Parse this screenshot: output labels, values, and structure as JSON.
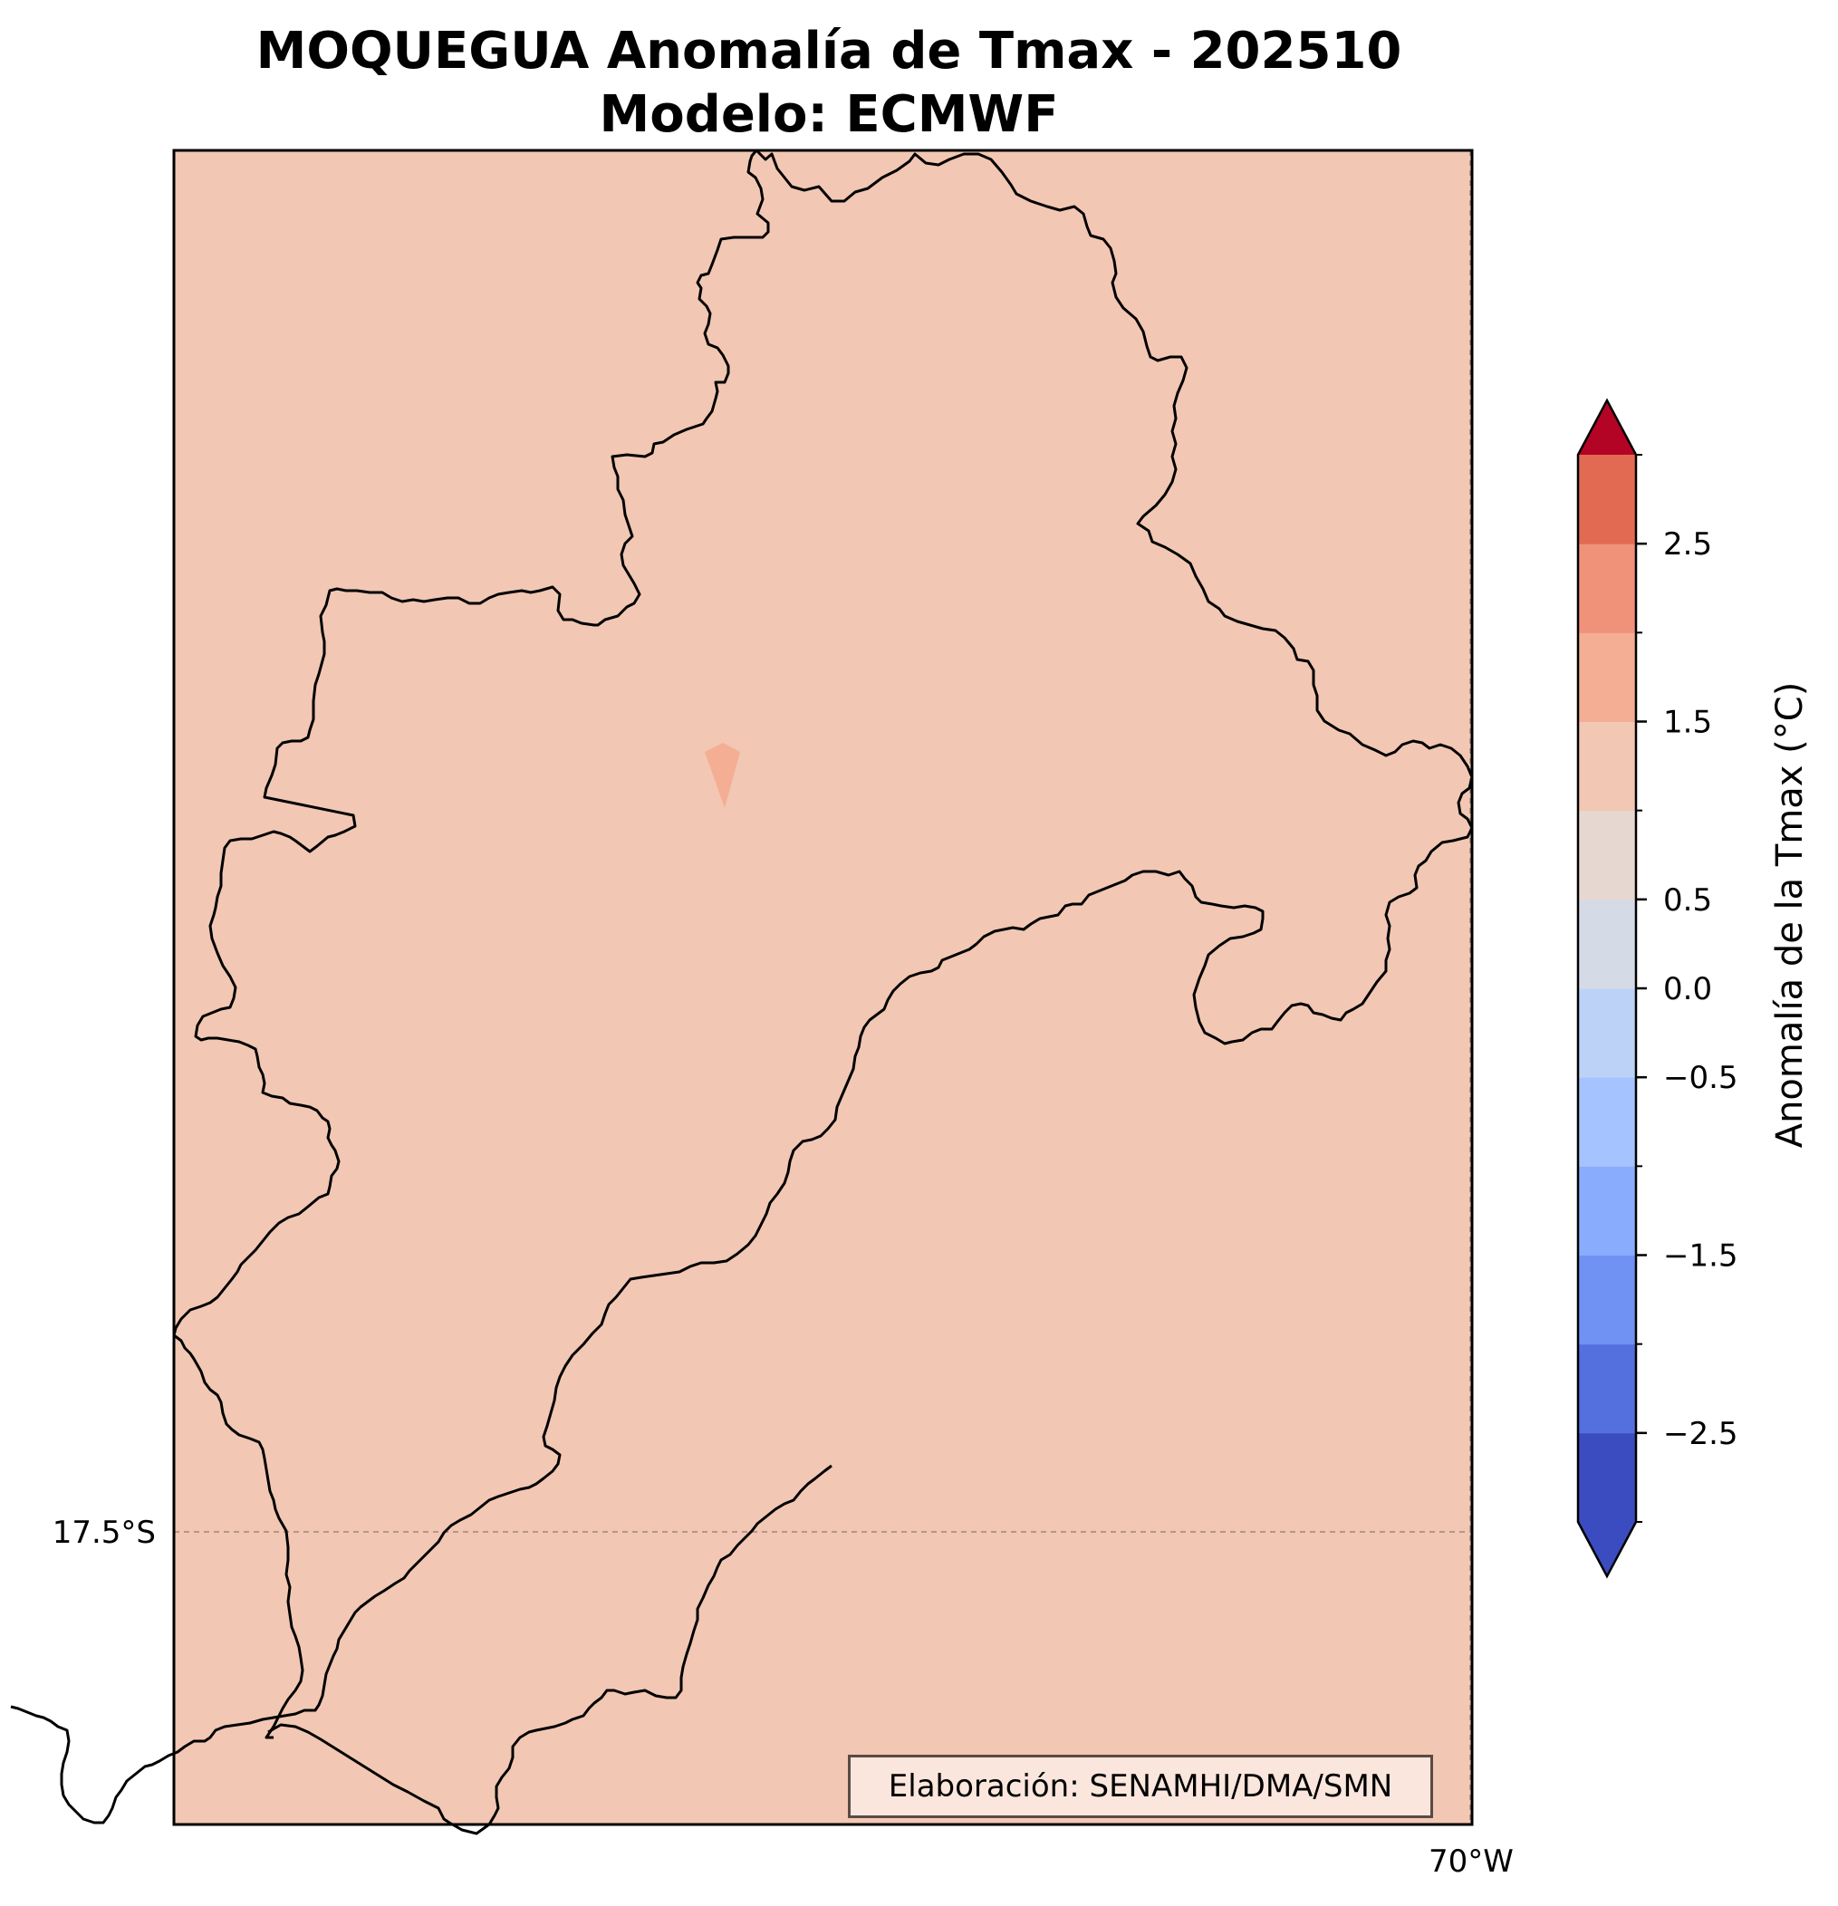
{
  "title": {
    "line1": "MOQUEGUA Anomalía de Tmax - 202510",
    "line2": "Modelo: ECMWF"
  },
  "map": {
    "fill_color": "#f2c7b3",
    "local_patch_color": "#f4ae94",
    "boundary_color": "#000000",
    "lat_label": "17.5°S",
    "lon_label": "70°W",
    "gridline_style": "dashed"
  },
  "colorbar": {
    "label": "Anomalía de la Tmax (°C)",
    "ticks": [
      {
        "value": 2.5,
        "label": "2.5"
      },
      {
        "value": 1.5,
        "label": "1.5"
      },
      {
        "value": 0.5,
        "label": "0.5"
      },
      {
        "value": 0.0,
        "label": "0.0"
      },
      {
        "value": -0.5,
        "label": "−0.5"
      },
      {
        "value": -1.5,
        "label": "−1.5"
      },
      {
        "value": -2.5,
        "label": "−2.5"
      }
    ],
    "levels": [
      -3,
      -2.5,
      -2,
      -1.5,
      -1,
      -0.5,
      0,
      0.5,
      1,
      1.5,
      2,
      2.5,
      3
    ],
    "colors": [
      "#3b4cc0",
      "#5470de",
      "#6f92f3",
      "#89acfd",
      "#a5c3fe",
      "#bcd2f7",
      "#d4dbe6",
      "#e6d8d0",
      "#f2c7b3",
      "#f4ae94",
      "#f0917a",
      "#e26a53",
      "#cb453b",
      "#b40426"
    ],
    "extend": "both",
    "colormap": "coolwarm"
  },
  "credit": "Elaboración: SENAMHI/DMA/SMN"
}
